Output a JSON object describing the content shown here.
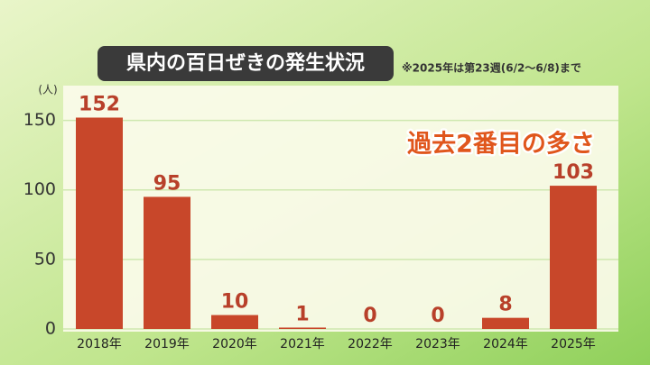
{
  "chart_data": {
    "type": "bar",
    "title": "県内の百日ぜきの発生状況",
    "note": "※2025年は第23週(6/2～6/8)まで",
    "y_label": "(人)",
    "annotation": "過去2番目の多さ",
    "categories": [
      "2018年",
      "2019年",
      "2020年",
      "2021年",
      "2022年",
      "2023年",
      "2024年",
      "2025年"
    ],
    "values": [
      152,
      95,
      10,
      1,
      0,
      0,
      8,
      103
    ],
    "color": "#c8472a",
    "ylim": [
      0,
      175
    ],
    "yticks": [
      0,
      50,
      100,
      150
    ],
    "grid": true
  }
}
